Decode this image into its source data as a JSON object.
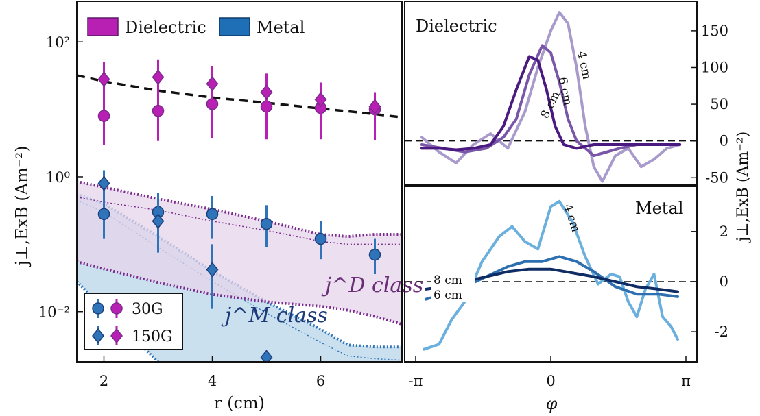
{
  "colors": {
    "dielectric": "#b81fb3",
    "dielectric_dark": "#7a2a8c",
    "metal": "#2f73b8",
    "metal_dark": "#1a3f7a",
    "dielectric_band": "#e6d4ea",
    "metal_band": "#c4dded",
    "d4": "#a89bcc",
    "d6": "#7a56a8",
    "d8": "#4a1a80",
    "m4": "#6bb0dd",
    "m6": "#2e6fb0",
    "m8": "#0f2d64"
  },
  "chart_data": [
    {
      "type": "scatter",
      "ylabel": "j⊥,ExB (Am⁻²)",
      "xlabel": "r (cm)",
      "x_ticks": [
        "2",
        "4",
        "6"
      ],
      "y_ticks": [
        "10²",
        "10⁰",
        "10⁻²"
      ],
      "y_log": true,
      "xlim": [
        1.5,
        7.5
      ],
      "ylim": [
        0.0018,
        400
      ],
      "legend_top": [
        "Dielectric",
        "Metal"
      ],
      "legend_bottom": [
        "30G",
        "150G"
      ],
      "band_labels": {
        "dielectric": "j^D class",
        "metal": "j^M class"
      },
      "fit_curve": {
        "x": [
          1.5,
          2,
          3,
          4,
          5,
          6,
          7,
          7.5
        ],
        "y": [
          32,
          26,
          19,
          15,
          12.5,
          10.3,
          8.5,
          7.6
        ]
      },
      "series": [
        {
          "name": "Dielectric 30G",
          "x": [
            2,
            3,
            4,
            5,
            6,
            7
          ],
          "y": [
            8,
            9.5,
            12,
            11,
            10.5,
            10
          ],
          "err_lo": [
            3,
            3.4,
            3.8,
            3.6,
            3.6,
            3.5
          ],
          "err_hi": [
            20,
            25,
            30,
            26,
            22,
            18
          ]
        },
        {
          "name": "Dielectric 150G",
          "x": [
            2,
            3,
            4,
            5,
            6,
            7
          ],
          "y": [
            28,
            30,
            24,
            18,
            14,
            11
          ],
          "err_lo": [
            12,
            13,
            11,
            9,
            8,
            7
          ],
          "err_hi": [
            50,
            55,
            44,
            34,
            25,
            18
          ]
        },
        {
          "name": "Metal 30G",
          "x": [
            2,
            3,
            4,
            5,
            6,
            7
          ],
          "y": [
            0.28,
            0.3,
            0.28,
            0.2,
            0.12,
            0.07
          ],
          "err_lo": [
            0.12,
            0.13,
            0.12,
            0.09,
            0.06,
            0.036
          ],
          "err_hi": [
            0.55,
            0.58,
            0.52,
            0.38,
            0.22,
            0.12
          ]
        },
        {
          "name": "Metal 150G",
          "x": [
            2,
            3,
            4,
            5
          ],
          "y": [
            0.8,
            0.22,
            0.042,
            0.0021
          ],
          "err_lo": [
            0.36,
            0.075,
            0.011,
            null
          ],
          "err_hi": [
            1.25,
            0.45,
            0.1,
            null
          ]
        }
      ],
      "bands": {
        "dielectric": {
          "x": [
            1.5,
            2,
            3,
            4,
            5,
            6,
            6.5,
            7,
            7.5
          ],
          "upper": [
            0.85,
            0.7,
            0.47,
            0.33,
            0.22,
            0.14,
            0.13,
            0.14,
            0.14
          ],
          "lower": [
            0.055,
            0.043,
            0.027,
            0.018,
            0.014,
            0.012,
            0.0105,
            0.0085,
            0.0065
          ],
          "mid": [
            0.5,
            0.42,
            0.32,
            0.22,
            0.16,
            0.11,
            0.1,
            0.1,
            0.1
          ]
        },
        "metal": {
          "x": [
            1.5,
            2,
            3,
            4,
            5,
            6,
            6.5,
            7,
            7.5
          ],
          "upper": [
            0.55,
            0.4,
            0.13,
            0.04,
            0.014,
            0.0055,
            0.0032,
            0.003,
            0.003
          ],
          "lower": [
            0.028,
            0.011,
            0.0018,
            0.0012,
            0.0012,
            0.0012,
            0.0012,
            0.0012,
            0.0012
          ],
          "mid": [
            0.45,
            0.3,
            0.09,
            0.028,
            0.0095,
            0.0035,
            0.0022,
            0.002,
            0.0019
          ]
        }
      }
    },
    {
      "type": "line",
      "title": "Dielectric",
      "ylabel": "j⊥,ExB (Am⁻²)",
      "y_ticks": [
        "150",
        "100",
        "50",
        "0",
        "-50"
      ],
      "ylim": [
        -60,
        190
      ],
      "xlim": [
        -3.1416,
        3.1416
      ],
      "series": [
        {
          "name": "4 cm",
          "x": [
            -3.0,
            -2.6,
            -2.2,
            -1.8,
            -1.4,
            -1.0,
            -0.6,
            -0.3,
            0.0,
            0.2,
            0.4,
            0.6,
            0.8,
            1.0,
            1.2,
            1.5,
            1.8,
            2.1,
            2.4,
            2.7,
            3.0
          ],
          "y": [
            5,
            -15,
            -30,
            -5,
            10,
            -10,
            40,
            100,
            150,
            175,
            160,
            100,
            20,
            -35,
            -55,
            -20,
            -10,
            -35,
            -25,
            -10,
            -5
          ]
        },
        {
          "name": "6 cm",
          "x": [
            -3.0,
            -2.5,
            -2.0,
            -1.5,
            -1.1,
            -0.8,
            -0.5,
            -0.2,
            0.0,
            0.2,
            0.4,
            0.6,
            0.8,
            1.0,
            1.3,
            1.6,
            2.0,
            2.4,
            2.8,
            3.0
          ],
          "y": [
            -5,
            -10,
            -15,
            -10,
            5,
            30,
            90,
            130,
            120,
            80,
            30,
            0,
            -10,
            -20,
            -15,
            -10,
            -5,
            -5,
            -5,
            -5
          ]
        },
        {
          "name": "8 cm",
          "x": [
            -3.0,
            -2.6,
            -2.2,
            -1.8,
            -1.4,
            -1.1,
            -0.8,
            -0.5,
            -0.3,
            -0.1,
            0.1,
            0.3,
            0.6,
            1.0,
            1.5,
            2.0,
            2.5,
            3.0
          ],
          "y": [
            -10,
            -10,
            -12,
            -10,
            -5,
            20,
            70,
            115,
            110,
            70,
            20,
            -5,
            -10,
            -5,
            -5,
            -5,
            -5,
            -5
          ]
        }
      ]
    },
    {
      "type": "line",
      "title": "Metal",
      "xlabel": "φ",
      "x_ticks": [
        "-π",
        "0",
        "π"
      ],
      "y_ticks": [
        "2",
        "0",
        "-2"
      ],
      "ylim": [
        -3.2,
        3.8
      ],
      "xlim": [
        -3.1416,
        3.1416
      ],
      "series": [
        {
          "name": "4 cm",
          "x": [
            -2.95,
            -2.6,
            -2.3,
            -2.0,
            -1.6,
            -1.2,
            -0.9,
            -0.6,
            -0.3,
            0.0,
            0.2,
            0.5,
            0.8,
            1.1,
            1.4,
            1.6,
            1.8,
            2.0,
            2.2,
            2.4,
            2.6,
            2.8,
            2.95
          ],
          "y": [
            -2.7,
            -2.5,
            -1.5,
            -0.8,
            0.8,
            1.8,
            2.2,
            1.6,
            1.3,
            3.0,
            3.2,
            2.4,
            1.0,
            -0.1,
            0.3,
            0.2,
            -0.8,
            -1.4,
            -0.3,
            0.3,
            -1.4,
            -1.8,
            -2.3
          ]
        },
        {
          "name": "6 cm",
          "x": [
            -2.9,
            -2.5,
            -2.0,
            -1.5,
            -1.0,
            -0.6,
            -0.2,
            0.2,
            0.6,
            1.0,
            1.5,
            2.0,
            2.5,
            2.95
          ],
          "y": [
            -0.7,
            -0.5,
            -0.2,
            0.2,
            0.6,
            0.8,
            0.8,
            1.0,
            0.8,
            0.4,
            -0.2,
            -0.5,
            -0.5,
            -0.6
          ]
        },
        {
          "name": "8 cm",
          "x": [
            -2.9,
            -2.5,
            -2.0,
            -1.5,
            -1.0,
            -0.5,
            0.0,
            0.5,
            1.0,
            1.5,
            2.0,
            2.5,
            2.95
          ],
          "y": [
            -0.3,
            -0.2,
            0.0,
            0.2,
            0.4,
            0.5,
            0.5,
            0.35,
            0.2,
            0.0,
            -0.2,
            -0.3,
            -0.4
          ]
        }
      ]
    }
  ]
}
